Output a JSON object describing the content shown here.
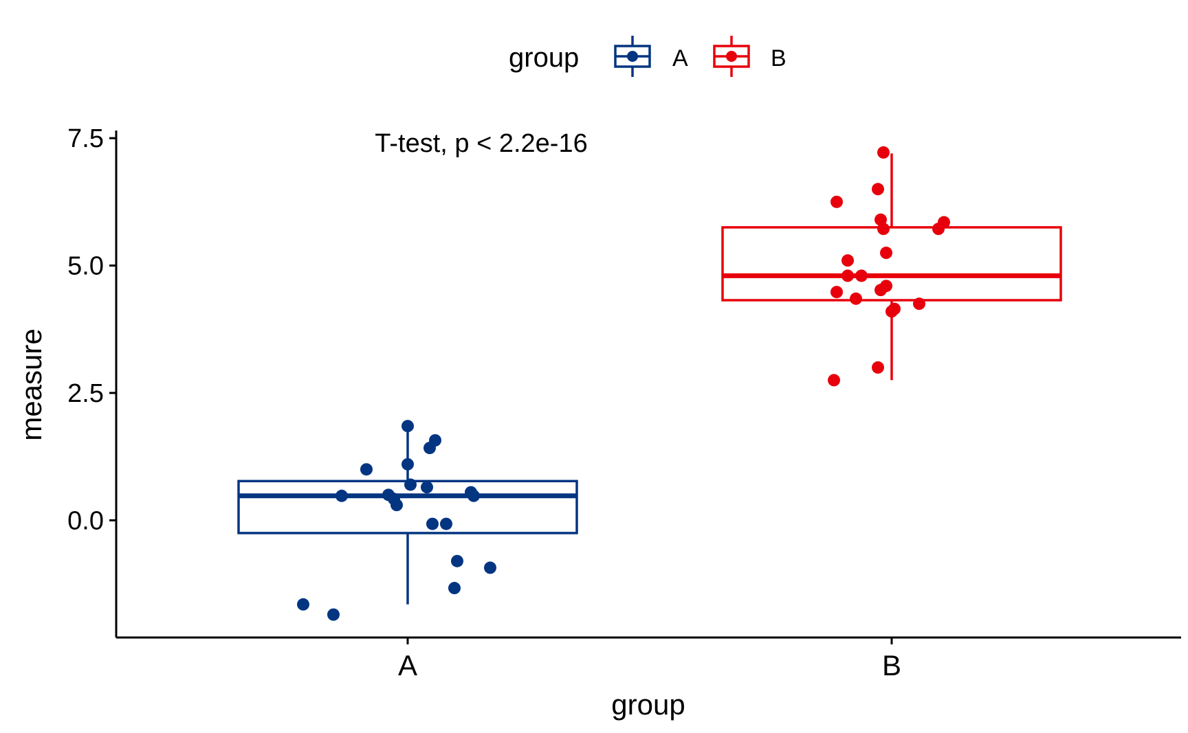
{
  "chart_data": {
    "type": "box",
    "xlabel": "group",
    "ylabel": "measure",
    "annotation": "T-test, p < 2.2e-16",
    "ylim": [
      -2.3,
      7.65
    ],
    "yticks": [
      0.0,
      2.5,
      5.0,
      7.5
    ],
    "ytick_labels": [
      "0.0",
      "2.5",
      "5.0",
      "7.5"
    ],
    "categories": [
      "A",
      "B"
    ],
    "legend": {
      "title": "group",
      "position": "top",
      "entries": [
        "A",
        "B"
      ]
    },
    "series": [
      {
        "name": "A",
        "color": "#033581",
        "box": {
          "q1": -0.25,
          "median": 0.48,
          "q3": 0.77,
          "whisker_low": -1.65,
          "whisker_high": 1.85
        },
        "points": [
          {
            "x": -0.38,
            "y": -1.65
          },
          {
            "x": -0.27,
            "y": -1.85
          },
          {
            "x": -0.24,
            "y": 0.48
          },
          {
            "x": -0.15,
            "y": 1.0
          },
          {
            "x": -0.07,
            "y": 0.5
          },
          {
            "x": -0.05,
            "y": 0.42
          },
          {
            "x": -0.04,
            "y": 0.3
          },
          {
            "x": 0.0,
            "y": 1.85
          },
          {
            "x": 0.0,
            "y": 1.1
          },
          {
            "x": 0.01,
            "y": 0.7
          },
          {
            "x": 0.07,
            "y": 0.65
          },
          {
            "x": 0.08,
            "y": 1.42
          },
          {
            "x": 0.09,
            "y": -0.07
          },
          {
            "x": 0.1,
            "y": 1.57
          },
          {
            "x": 0.14,
            "y": -0.07
          },
          {
            "x": 0.17,
            "y": -1.33
          },
          {
            "x": 0.18,
            "y": -0.8
          },
          {
            "x": 0.23,
            "y": 0.55
          },
          {
            "x": 0.24,
            "y": 0.48
          },
          {
            "x": 0.3,
            "y": -0.93
          }
        ]
      },
      {
        "name": "B",
        "color": "#e7000b",
        "box": {
          "q1": 4.32,
          "median": 4.8,
          "q3": 5.75,
          "whisker_low": 2.75,
          "whisker_high": 7.2
        },
        "points": [
          {
            "x": -0.21,
            "y": 2.75
          },
          {
            "x": -0.2,
            "y": 6.25
          },
          {
            "x": -0.2,
            "y": 4.48
          },
          {
            "x": -0.16,
            "y": 5.1
          },
          {
            "x": -0.16,
            "y": 4.8
          },
          {
            "x": -0.13,
            "y": 4.35
          },
          {
            "x": -0.11,
            "y": 4.8
          },
          {
            "x": -0.05,
            "y": 6.5
          },
          {
            "x": -0.05,
            "y": 3.0
          },
          {
            "x": -0.04,
            "y": 5.9
          },
          {
            "x": -0.04,
            "y": 4.52
          },
          {
            "x": -0.03,
            "y": 7.22
          },
          {
            "x": -0.03,
            "y": 5.72
          },
          {
            "x": -0.02,
            "y": 5.25
          },
          {
            "x": -0.02,
            "y": 4.6
          },
          {
            "x": 0.0,
            "y": 4.1
          },
          {
            "x": 0.01,
            "y": 4.15
          },
          {
            "x": 0.1,
            "y": 4.25
          },
          {
            "x": 0.17,
            "y": 5.72
          },
          {
            "x": 0.19,
            "y": 5.85
          }
        ]
      }
    ]
  }
}
